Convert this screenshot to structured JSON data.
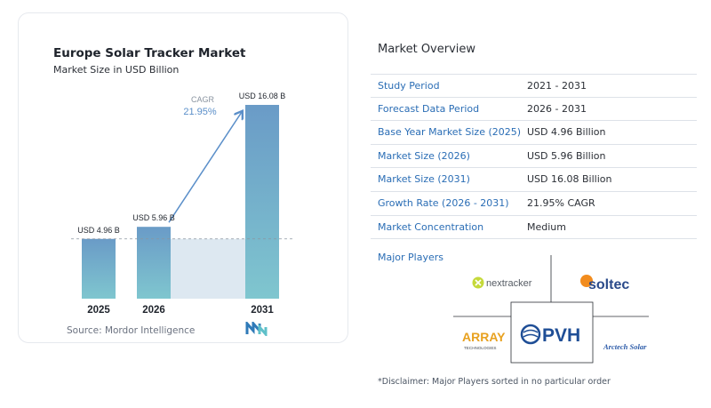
{
  "chart_data": {
    "type": "bar",
    "title": "Europe Solar Tracker Market",
    "subtitle": "Market Size in USD Billion",
    "categories": [
      "2025",
      "2026",
      "2031"
    ],
    "values": [
      4.96,
      5.96,
      16.08
    ],
    "data_labels": [
      "USD 4.96 B",
      "USD 5.96 B",
      "USD 16.08 B"
    ],
    "cagr_label": "CAGR",
    "cagr_value": "21.95%",
    "ylim": [
      0,
      16.08
    ],
    "grid": false
  },
  "source_text": "Source:  Mordor Intelligence",
  "overview": {
    "title": "Market Overview",
    "rows": [
      {
        "label": "Study Period",
        "value": "2021 - 2031"
      },
      {
        "label": "Forecast Data Period",
        "value": "2026 - 2031"
      },
      {
        "label": "Base Year Market Size (2025)",
        "value": "USD 4.96 Billion"
      },
      {
        "label": "Market Size (2026)",
        "value": "USD 5.96 Billion"
      },
      {
        "label": "Market Size (2031)",
        "value": "USD 16.08 Billion"
      },
      {
        "label": "Growth Rate (2026 - 2031)",
        "value": "21.95% CAGR"
      },
      {
        "label": "Market Concentration",
        "value": "Medium"
      }
    ]
  },
  "players": {
    "title": "Major Players",
    "logos": [
      "nextracker",
      "soltec",
      "ARRAY",
      "TECHNOLOGIES",
      "PVH",
      "Arctech Solar"
    ]
  },
  "disclaimer": "*Disclaimer: Major Players sorted in no particular order",
  "colors": {
    "bar_top": "#6a9bc7",
    "bar_bottom": "#7fc6cf",
    "shade": "#dde8f1",
    "accent": "#2a6db5",
    "arrow": "#5b8fc9"
  }
}
